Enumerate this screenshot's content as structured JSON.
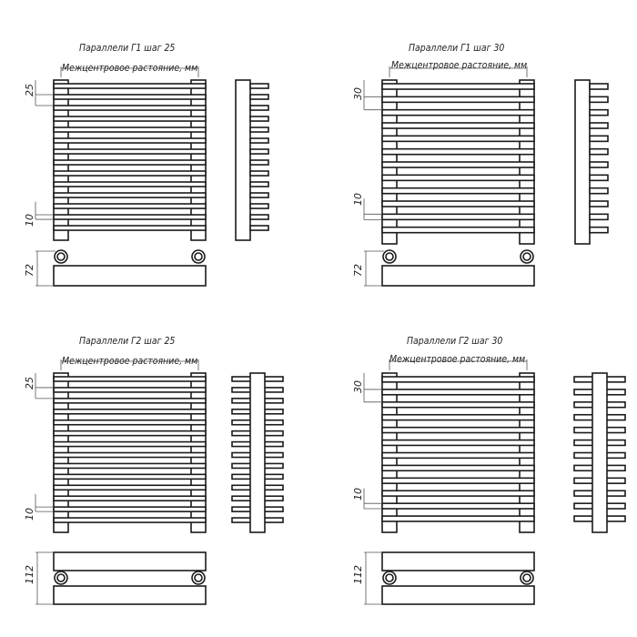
{
  "panels": [
    {
      "title": "Параллели Г1 шаг 25",
      "subtitle": "Межцентровое растояние, мм",
      "pitch_label": "25",
      "bar_label": "10",
      "depth_label": "72",
      "type": "Г1",
      "bars": 14
    },
    {
      "title": "Параллели Г1 шаг 30",
      "subtitle": "Межцентровое растояние, мм",
      "pitch_label": "30",
      "bar_label": "10",
      "depth_label": "72",
      "type": "Г1",
      "bars": 12
    },
    {
      "title": "Параллели Г2 шаг 25",
      "subtitle": "Межцентровое растояние, мм",
      "pitch_label": "25",
      "bar_label": "10",
      "depth_label": "112",
      "type": "Г2",
      "bars": 14
    },
    {
      "title": "Параллели Г2 шаг 30",
      "subtitle": "Межцентровое растояние, мм",
      "pitch_label": "30",
      "bar_label": "10",
      "depth_label": "112",
      "type": "Г2",
      "bars": 12
    }
  ],
  "colors": {
    "line": "#1a1a1a",
    "background": "#ffffff"
  }
}
